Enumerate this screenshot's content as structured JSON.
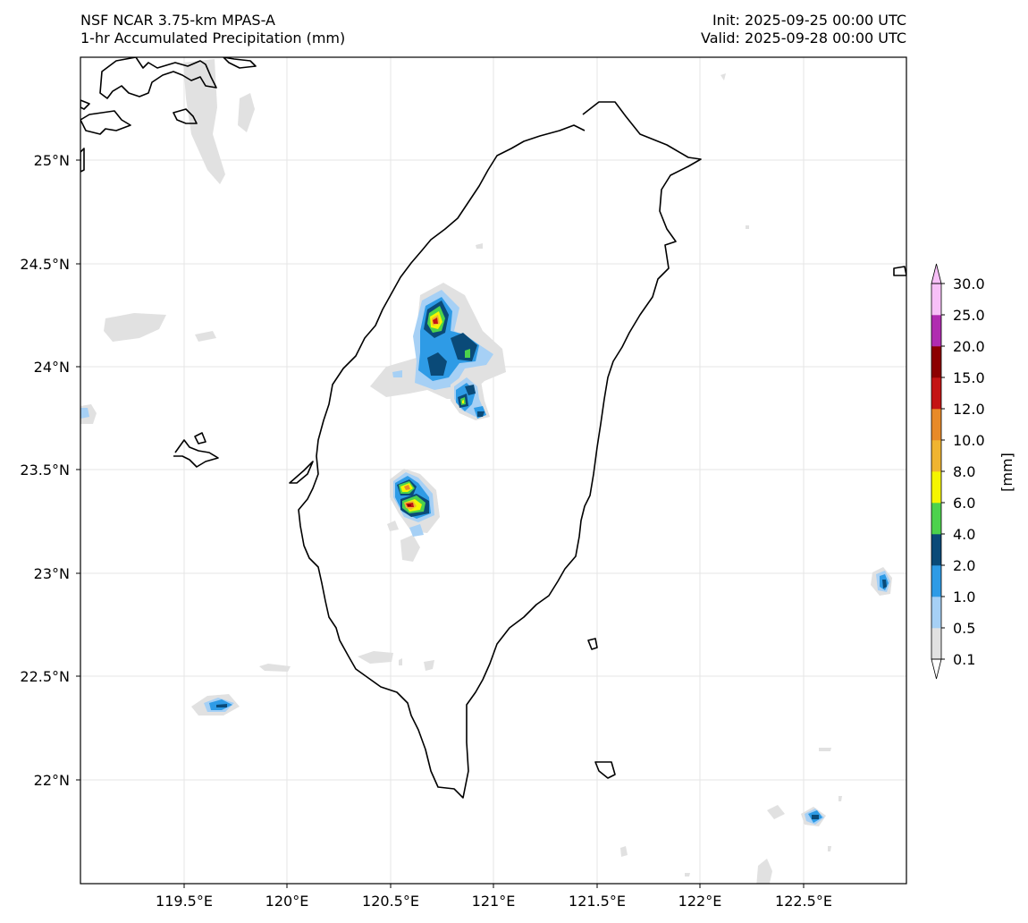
{
  "header": {
    "model": "NSF NCAR 3.75-km MPAS-A",
    "field": "1-hr Accumulated Precipitation (mm)",
    "init": "Init: 2025-09-25 00:00 UTC",
    "valid": "Valid: 2025-09-28 00:00 UTC"
  },
  "axes": {
    "lon_labels": [
      "119.5°E",
      "120°E",
      "120.5°E",
      "121°E",
      "121.5°E",
      "122°E",
      "122.5°E"
    ],
    "lat_labels": [
      "25°N",
      "24.5°N",
      "24°N",
      "23.5°N",
      "23°N",
      "22.5°N",
      "22°N"
    ]
  },
  "colorbar": {
    "unit_label": "[mm]",
    "levels": [
      "0.1",
      "0.5",
      "1.0",
      "2.0",
      "4.0",
      "6.0",
      "8.0",
      "10.0",
      "12.0",
      "15.0",
      "20.0",
      "25.0",
      "30.0"
    ],
    "colors": [
      "#e1e1e1",
      "#a6d0f5",
      "#2e9be6",
      "#0a4a78",
      "#4cd24c",
      "#f5f500",
      "#f0b430",
      "#e88a28",
      "#c41414",
      "#8c0000",
      "#b02cb0",
      "#f7c0f7"
    ]
  },
  "precip_cells": [
    {
      "name": "north-cell",
      "peak_mm": 15.0
    },
    {
      "name": "central-cell",
      "peak_mm": 6.0
    },
    {
      "name": "southwest-cell",
      "peak_mm": 15.0
    },
    {
      "name": "east-island-cell",
      "peak_mm": 4.0
    },
    {
      "name": "southeast-island-cell",
      "peak_mm": 4.0
    },
    {
      "name": "penghu-south-cell",
      "peak_mm": 4.0
    }
  ]
}
